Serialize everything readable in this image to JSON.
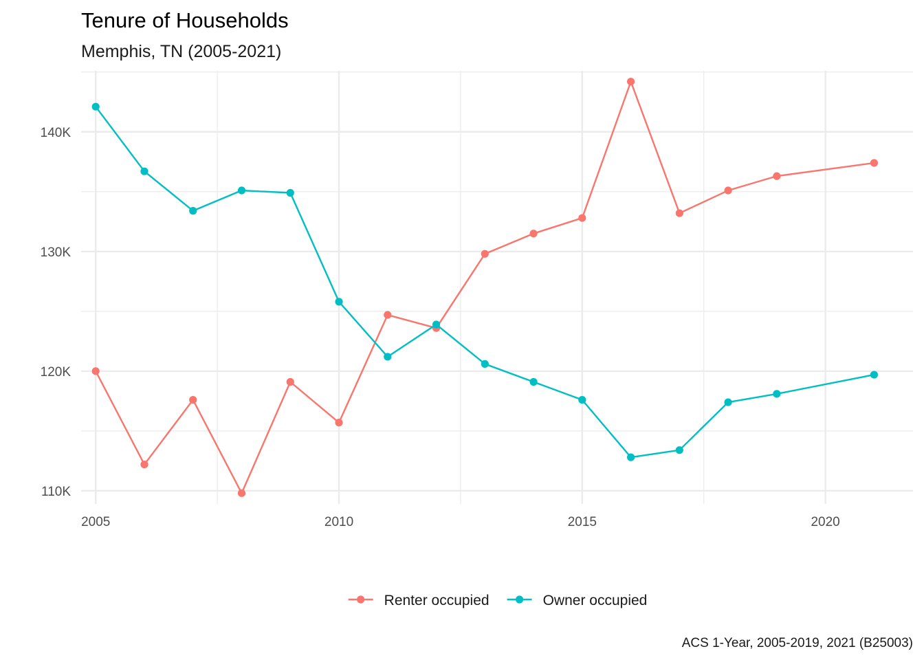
{
  "chart_data": {
    "type": "line",
    "title": "Tenure of Households",
    "subtitle": "Memphis, TN (2005-2021)",
    "caption": "ACS 1-Year, 2005-2019, 2021 (B25003)",
    "xlabel": "",
    "ylabel": "",
    "x": [
      2005,
      2006,
      2007,
      2008,
      2009,
      2010,
      2011,
      2012,
      2013,
      2014,
      2015,
      2016,
      2017,
      2018,
      2019,
      2021
    ],
    "xlim": [
      2004.7,
      2021.8
    ],
    "ylim": [
      108900,
      145100
    ],
    "x_ticks": [
      2005,
      2010,
      2015,
      2020
    ],
    "x_tick_labels": [
      "2005",
      "2010",
      "2015",
      "2020"
    ],
    "x_minor_ticks": [
      2007.5,
      2012.5,
      2017.5
    ],
    "y_ticks": [
      110000,
      120000,
      130000,
      140000
    ],
    "y_tick_labels": [
      "110K",
      "120K",
      "130K",
      "140K"
    ],
    "y_minor_ticks": [
      115000,
      125000,
      135000,
      145000
    ],
    "grid": true,
    "legend_position": "bottom",
    "series": [
      {
        "name": "Renter occupied",
        "color": "#F8766D",
        "values": [
          120000,
          112200,
          117600,
          109800,
          119100,
          115700,
          124700,
          123600,
          129800,
          131500,
          132800,
          144200,
          133200,
          135100,
          136300,
          137400
        ]
      },
      {
        "name": "Owner occupied",
        "color": "#00BFC4",
        "values": [
          142100,
          136700,
          133400,
          135100,
          134900,
          125800,
          121200,
          123900,
          120600,
          119100,
          117600,
          112800,
          113400,
          117400,
          118100,
          119700
        ]
      }
    ]
  }
}
